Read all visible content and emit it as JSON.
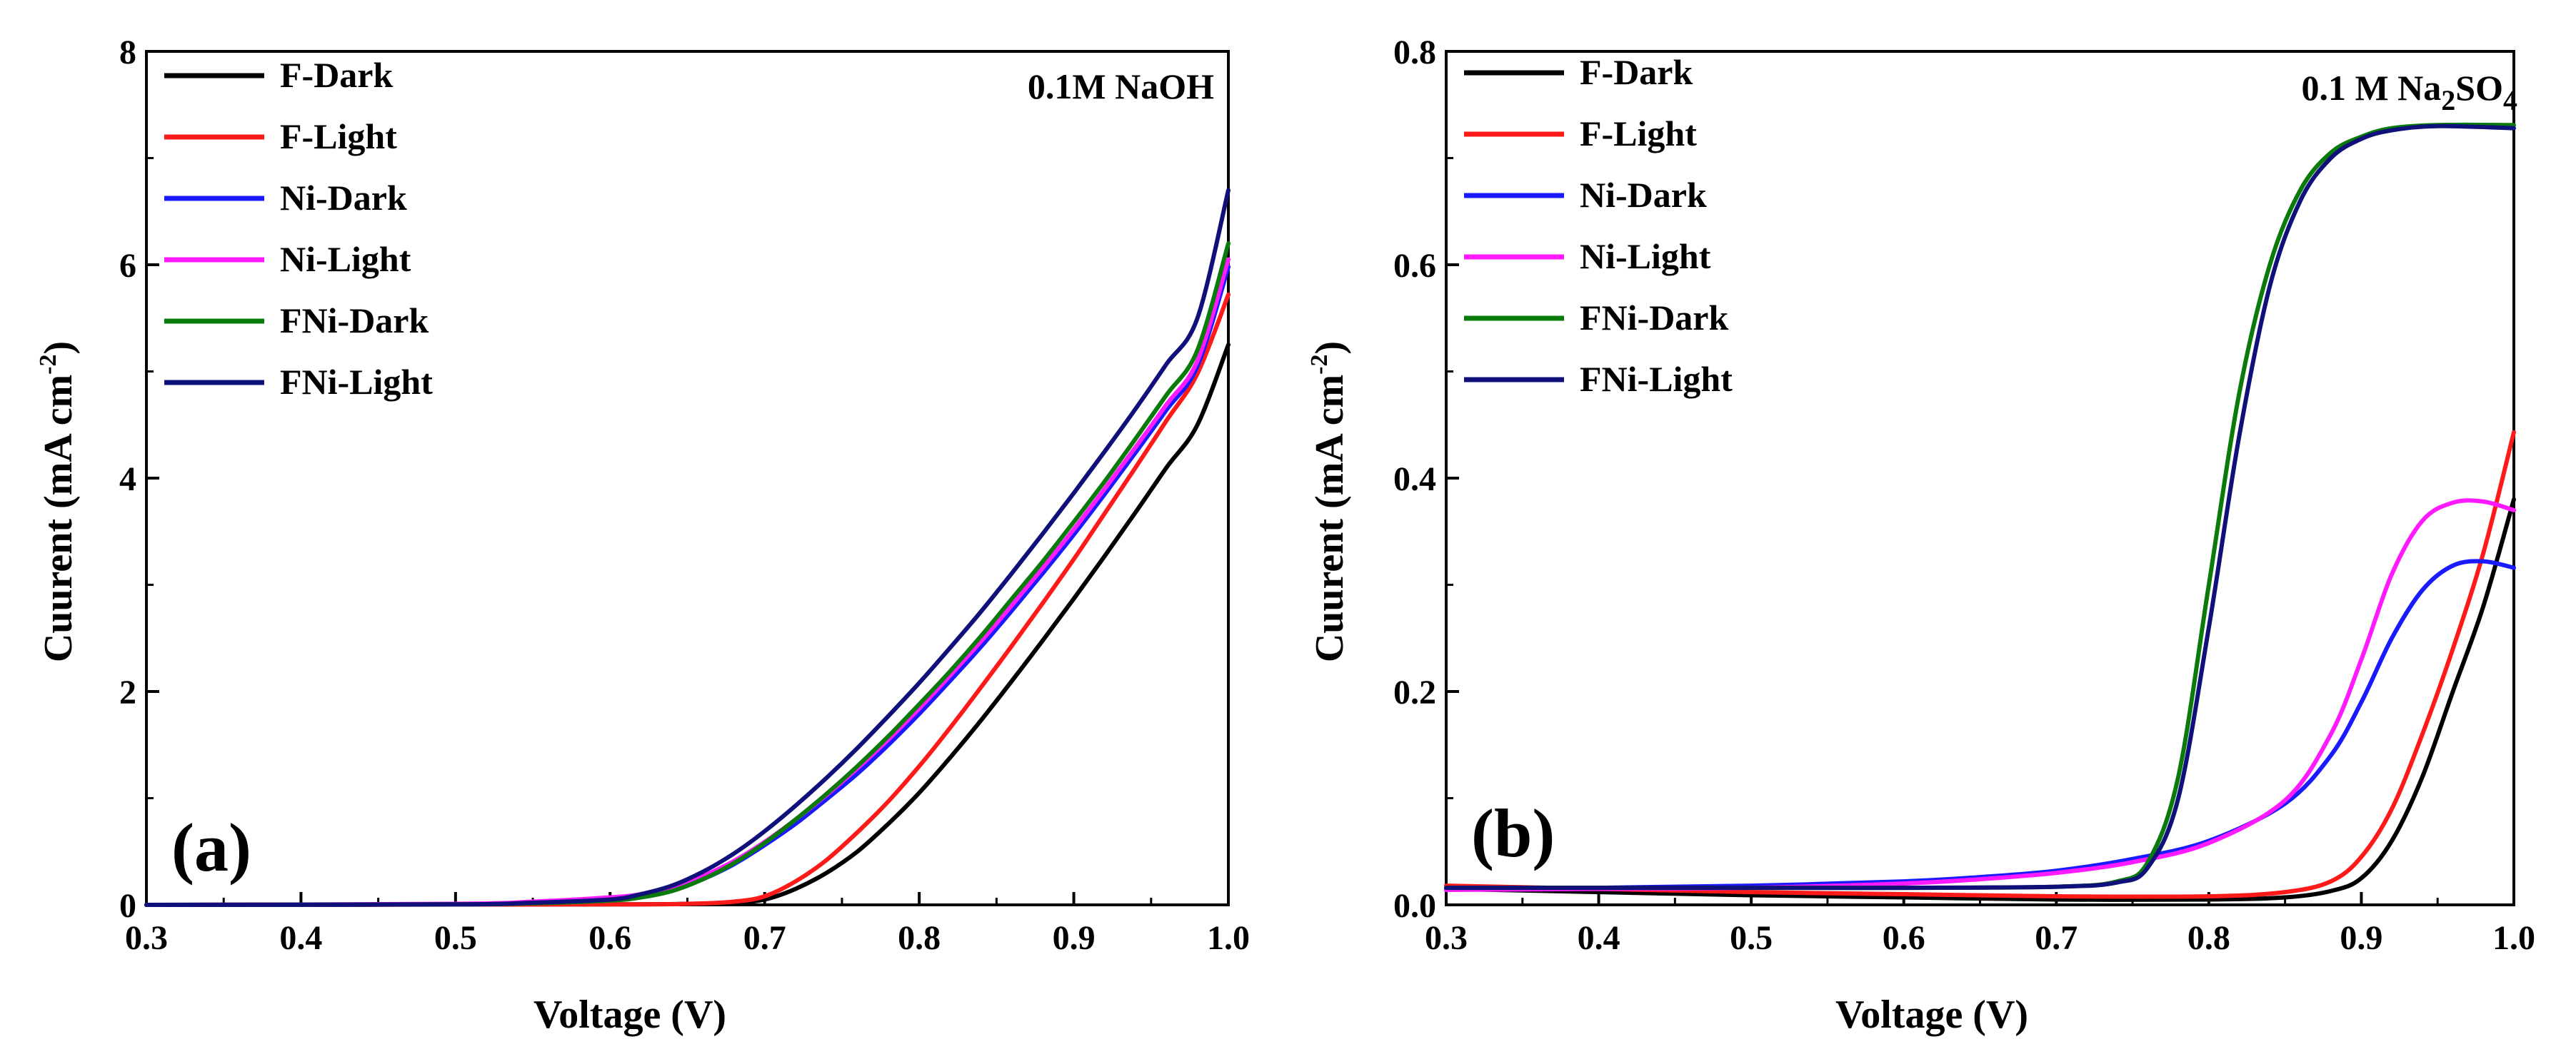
{
  "colors": {
    "F-Dark": "#000000",
    "F-Light": "#ff1a1a",
    "Ni-Dark": "#1a1aff",
    "Ni-Light": "#ff1aff",
    "FNi-Dark": "#0a7a0a",
    "FNi-Light": "#10107a"
  },
  "chart_data": [
    {
      "type": "line",
      "panel_label": "(a)",
      "condition_label": "0.1M NaOH",
      "xlabel": "Voltage (V)",
      "ylabel": "Cuurent (mA cm",
      "ylabel_sup": "-2",
      "ylabel_close": ")",
      "xlim": [
        0.3,
        1.0
      ],
      "ylim": [
        0,
        8
      ],
      "xticks": [
        "0.3",
        "0.4",
        "0.5",
        "0.6",
        "0.7",
        "0.8",
        "0.9",
        "1.0"
      ],
      "yticks": [
        "0",
        "2",
        "4",
        "6",
        "8"
      ],
      "legend_position": "top-left",
      "grid": false,
      "series": [
        {
          "name": "F-Dark",
          "points": [
            [
              0.3,
              0
            ],
            [
              0.6,
              0.005
            ],
            [
              0.65,
              0.01
            ],
            [
              0.68,
              0.02
            ],
            [
              0.7,
              0.05
            ],
            [
              0.72,
              0.15
            ],
            [
              0.74,
              0.3
            ],
            [
              0.76,
              0.5
            ],
            [
              0.78,
              0.76
            ],
            [
              0.8,
              1.05
            ],
            [
              0.82,
              1.38
            ],
            [
              0.84,
              1.73
            ],
            [
              0.86,
              2.1
            ],
            [
              0.88,
              2.48
            ],
            [
              0.9,
              2.87
            ],
            [
              0.92,
              3.27
            ],
            [
              0.94,
              3.68
            ],
            [
              0.96,
              4.1
            ],
            [
              0.98,
              4.5
            ],
            [
              1.0,
              5.25
            ]
          ]
        },
        {
          "name": "F-Light",
          "points": [
            [
              0.3,
              0
            ],
            [
              0.6,
              0.005
            ],
            [
              0.65,
              0.01
            ],
            [
              0.68,
              0.03
            ],
            [
              0.7,
              0.08
            ],
            [
              0.72,
              0.22
            ],
            [
              0.74,
              0.42
            ],
            [
              0.76,
              0.68
            ],
            [
              0.78,
              0.97
            ],
            [
              0.8,
              1.3
            ],
            [
              0.82,
              1.66
            ],
            [
              0.84,
              2.04
            ],
            [
              0.86,
              2.43
            ],
            [
              0.88,
              2.83
            ],
            [
              0.9,
              3.24
            ],
            [
              0.92,
              3.67
            ],
            [
              0.94,
              4.1
            ],
            [
              0.96,
              4.54
            ],
            [
              0.98,
              4.98
            ],
            [
              1.0,
              5.72
            ]
          ]
        },
        {
          "name": "Ni-Dark",
          "points": [
            [
              0.3,
              0
            ],
            [
              0.5,
              0.005
            ],
            [
              0.55,
              0.02
            ],
            [
              0.6,
              0.05
            ],
            [
              0.62,
              0.08
            ],
            [
              0.64,
              0.14
            ],
            [
              0.66,
              0.24
            ],
            [
              0.68,
              0.38
            ],
            [
              0.7,
              0.56
            ],
            [
              0.72,
              0.76
            ],
            [
              0.74,
              0.99
            ],
            [
              0.76,
              1.23
            ],
            [
              0.78,
              1.5
            ],
            [
              0.8,
              1.79
            ],
            [
              0.82,
              2.1
            ],
            [
              0.84,
              2.42
            ],
            [
              0.86,
              2.76
            ],
            [
              0.88,
              3.11
            ],
            [
              0.9,
              3.47
            ],
            [
              0.92,
              3.85
            ],
            [
              0.94,
              4.24
            ],
            [
              0.96,
              4.64
            ],
            [
              0.98,
              5.05
            ],
            [
              1.0,
              5.98
            ]
          ]
        },
        {
          "name": "Ni-Light",
          "points": [
            [
              0.3,
              0
            ],
            [
              0.5,
              0.01
            ],
            [
              0.55,
              0.03
            ],
            [
              0.6,
              0.07
            ],
            [
              0.62,
              0.1
            ],
            [
              0.64,
              0.17
            ],
            [
              0.66,
              0.27
            ],
            [
              0.68,
              0.41
            ],
            [
              0.7,
              0.59
            ],
            [
              0.72,
              0.8
            ],
            [
              0.74,
              1.03
            ],
            [
              0.76,
              1.28
            ],
            [
              0.78,
              1.55
            ],
            [
              0.8,
              1.84
            ],
            [
              0.82,
              2.15
            ],
            [
              0.84,
              2.47
            ],
            [
              0.86,
              2.81
            ],
            [
              0.88,
              3.16
            ],
            [
              0.9,
              3.52
            ],
            [
              0.92,
              3.9
            ],
            [
              0.94,
              4.29
            ],
            [
              0.96,
              4.69
            ],
            [
              0.98,
              5.1
            ],
            [
              1.0,
              6.05
            ]
          ]
        },
        {
          "name": "FNi-Dark",
          "points": [
            [
              0.3,
              0
            ],
            [
              0.5,
              0.005
            ],
            [
              0.55,
              0.015
            ],
            [
              0.6,
              0.04
            ],
            [
              0.62,
              0.07
            ],
            [
              0.64,
              0.13
            ],
            [
              0.66,
              0.24
            ],
            [
              0.68,
              0.39
            ],
            [
              0.7,
              0.58
            ],
            [
              0.72,
              0.8
            ],
            [
              0.74,
              1.04
            ],
            [
              0.76,
              1.3
            ],
            [
              0.78,
              1.58
            ],
            [
              0.8,
              1.88
            ],
            [
              0.82,
              2.19
            ],
            [
              0.84,
              2.52
            ],
            [
              0.86,
              2.87
            ],
            [
              0.88,
              3.22
            ],
            [
              0.9,
              3.59
            ],
            [
              0.92,
              3.97
            ],
            [
              0.94,
              4.37
            ],
            [
              0.96,
              4.78
            ],
            [
              0.98,
              5.2
            ],
            [
              1.0,
              6.2
            ]
          ]
        },
        {
          "name": "FNi-Light",
          "points": [
            [
              0.3,
              0
            ],
            [
              0.5,
              0.005
            ],
            [
              0.55,
              0.02
            ],
            [
              0.6,
              0.05
            ],
            [
              0.62,
              0.1
            ],
            [
              0.64,
              0.18
            ],
            [
              0.66,
              0.31
            ],
            [
              0.68,
              0.48
            ],
            [
              0.7,
              0.69
            ],
            [
              0.72,
              0.93
            ],
            [
              0.74,
              1.19
            ],
            [
              0.76,
              1.47
            ],
            [
              0.78,
              1.77
            ],
            [
              0.8,
              2.08
            ],
            [
              0.82,
              2.41
            ],
            [
              0.84,
              2.75
            ],
            [
              0.86,
              3.11
            ],
            [
              0.88,
              3.48
            ],
            [
              0.9,
              3.86
            ],
            [
              0.92,
              4.25
            ],
            [
              0.94,
              4.65
            ],
            [
              0.96,
              5.07
            ],
            [
              0.98,
              5.5
            ],
            [
              1.0,
              6.7
            ]
          ]
        }
      ]
    },
    {
      "type": "line",
      "panel_label": "(b)",
      "condition_label": "0.1 M Na",
      "condition_sub1": "2",
      "condition_mid": "SO",
      "condition_sub2": "4",
      "xlabel": "Voltage (V)",
      "ylabel": "Cuurent (mA cm",
      "ylabel_sup": "-2",
      "ylabel_close": ")",
      "xlim": [
        0.3,
        1.0
      ],
      "ylim": [
        0,
        0.8
      ],
      "xticks": [
        "0.3",
        "0.4",
        "0.5",
        "0.6",
        "0.7",
        "0.8",
        "0.9",
        "1.0"
      ],
      "yticks": [
        "0.0",
        "0.2",
        "0.4",
        "0.6",
        "0.8"
      ],
      "legend_position": "top-left",
      "grid": false,
      "series": [
        {
          "name": "F-Dark",
          "points": [
            [
              0.3,
              0.015
            ],
            [
              0.4,
              0.012
            ],
            [
              0.5,
              0.009
            ],
            [
              0.6,
              0.007
            ],
            [
              0.7,
              0.005
            ],
            [
              0.8,
              0.005
            ],
            [
              0.85,
              0.007
            ],
            [
              0.88,
              0.013
            ],
            [
              0.9,
              0.025
            ],
            [
              0.92,
              0.06
            ],
            [
              0.94,
              0.12
            ],
            [
              0.96,
              0.2
            ],
            [
              0.98,
              0.28
            ],
            [
              1.0,
              0.38
            ]
          ]
        },
        {
          "name": "F-Light",
          "points": [
            [
              0.3,
              0.018
            ],
            [
              0.4,
              0.015
            ],
            [
              0.5,
              0.012
            ],
            [
              0.6,
              0.01
            ],
            [
              0.7,
              0.008
            ],
            [
              0.8,
              0.008
            ],
            [
              0.85,
              0.012
            ],
            [
              0.88,
              0.022
            ],
            [
              0.9,
              0.045
            ],
            [
              0.92,
              0.09
            ],
            [
              0.94,
              0.16
            ],
            [
              0.96,
              0.24
            ],
            [
              0.98,
              0.33
            ],
            [
              1.0,
              0.443
            ]
          ]
        },
        {
          "name": "Ni-Dark",
          "points": [
            [
              0.3,
              0.015
            ],
            [
              0.4,
              0.016
            ],
            [
              0.5,
              0.018
            ],
            [
              0.6,
              0.022
            ],
            [
              0.65,
              0.026
            ],
            [
              0.7,
              0.032
            ],
            [
              0.75,
              0.043
            ],
            [
              0.8,
              0.06
            ],
            [
              0.85,
              0.095
            ],
            [
              0.88,
              0.14
            ],
            [
              0.9,
              0.19
            ],
            [
              0.92,
              0.25
            ],
            [
              0.94,
              0.295
            ],
            [
              0.96,
              0.318
            ],
            [
              0.98,
              0.322
            ],
            [
              1.0,
              0.316
            ]
          ]
        },
        {
          "name": "Ni-Light",
          "points": [
            [
              0.3,
              0.014
            ],
            [
              0.4,
              0.015
            ],
            [
              0.5,
              0.016
            ],
            [
              0.6,
              0.02
            ],
            [
              0.65,
              0.024
            ],
            [
              0.7,
              0.03
            ],
            [
              0.75,
              0.04
            ],
            [
              0.8,
              0.058
            ],
            [
              0.85,
              0.098
            ],
            [
              0.88,
              0.16
            ],
            [
              0.9,
              0.23
            ],
            [
              0.92,
              0.31
            ],
            [
              0.94,
              0.36
            ],
            [
              0.96,
              0.377
            ],
            [
              0.98,
              0.378
            ],
            [
              1.0,
              0.37
            ]
          ]
        },
        {
          "name": "FNi-Dark",
          "points": [
            [
              0.3,
              0.016
            ],
            [
              0.4,
              0.016
            ],
            [
              0.5,
              0.016
            ],
            [
              0.6,
              0.016
            ],
            [
              0.7,
              0.017
            ],
            [
              0.74,
              0.022
            ],
            [
              0.76,
              0.04
            ],
            [
              0.78,
              0.12
            ],
            [
              0.8,
              0.3
            ],
            [
              0.82,
              0.48
            ],
            [
              0.84,
              0.6
            ],
            [
              0.86,
              0.67
            ],
            [
              0.88,
              0.705
            ],
            [
              0.9,
              0.72
            ],
            [
              0.92,
              0.728
            ],
            [
              0.95,
              0.731
            ],
            [
              1.0,
              0.731
            ]
          ]
        },
        {
          "name": "FNi-Light",
          "points": [
            [
              0.3,
              0.016
            ],
            [
              0.4,
              0.016
            ],
            [
              0.5,
              0.016
            ],
            [
              0.6,
              0.016
            ],
            [
              0.7,
              0.017
            ],
            [
              0.74,
              0.021
            ],
            [
              0.76,
              0.035
            ],
            [
              0.78,
              0.1
            ],
            [
              0.8,
              0.26
            ],
            [
              0.82,
              0.44
            ],
            [
              0.84,
              0.58
            ],
            [
              0.86,
              0.66
            ],
            [
              0.88,
              0.7
            ],
            [
              0.9,
              0.718
            ],
            [
              0.92,
              0.726
            ],
            [
              0.95,
              0.73
            ],
            [
              1.0,
              0.728
            ]
          ]
        }
      ]
    }
  ]
}
